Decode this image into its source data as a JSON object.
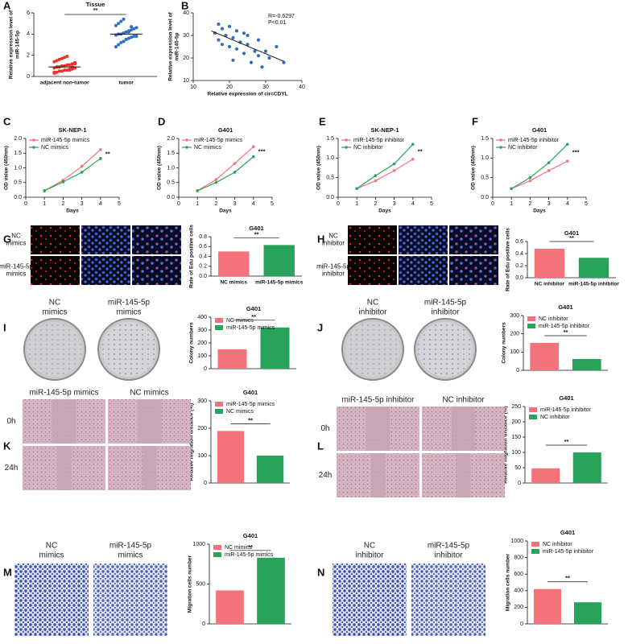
{
  "chart_data": [
    {
      "panel": "A",
      "type": "dot",
      "title": "Tissue",
      "ylabel": [
        "Relative expression level of",
        "miR-145-5p"
      ],
      "categories": [
        "adjacent non-tumor",
        "tumor"
      ],
      "colors": [
        "#e8322e",
        "#2f6fc1"
      ],
      "values": [
        [
          0.3,
          0.4,
          0.5,
          0.5,
          0.6,
          0.6,
          0.7,
          0.7,
          0.8,
          0.8,
          0.9,
          0.9,
          1.0,
          1.0,
          1.1,
          1.1,
          1.2,
          1.3,
          1.4,
          1.5,
          1.6,
          1.7,
          1.8,
          1.9,
          0.6,
          0.9,
          1.2,
          0.4
        ],
        [
          2.8,
          3.0,
          3.2,
          3.3,
          3.5,
          3.6,
          3.7,
          3.8,
          3.8,
          3.9,
          4.0,
          4.0,
          4.1,
          4.2,
          4.3,
          4.4,
          4.5,
          4.6,
          4.8,
          5.0,
          5.2,
          5.4,
          3.5,
          4.2,
          4.7
        ]
      ],
      "means": [
        0.9,
        4.0
      ],
      "ylim": [
        0,
        6
      ],
      "yticks": [
        0,
        2,
        4,
        6
      ],
      "annotation": "**"
    },
    {
      "panel": "B",
      "type": "scatter",
      "xlabel": "Relative expression of circCDYL",
      "ylabel": [
        "Relative expression level of",
        "miR-145-5p"
      ],
      "x": [
        16,
        17,
        17,
        18,
        19,
        20,
        20,
        21,
        22,
        22,
        23,
        24,
        25,
        25,
        26,
        27,
        28,
        28,
        29,
        30,
        31,
        33,
        35,
        18,
        21,
        24
      ],
      "y": [
        31,
        35,
        28,
        33,
        30,
        34,
        25,
        29,
        32,
        24,
        27,
        22,
        30,
        26,
        18,
        23,
        21,
        28,
        16,
        23,
        20,
        25,
        18,
        26,
        19,
        31
      ],
      "color": "#2f6fc1",
      "fit_x": [
        15,
        35
      ],
      "fit_y": [
        32,
        18.5
      ],
      "xlim": [
        10,
        40
      ],
      "xticks": [
        10,
        20,
        30,
        40
      ],
      "ylim": [
        10,
        40
      ],
      "yticks": [
        10,
        20,
        30,
        40
      ],
      "annotations": [
        "R=-0.6297",
        "P<0.01"
      ]
    },
    {
      "panel": "C",
      "type": "line",
      "title": "SK-NEP-1",
      "xlabel": "Days",
      "ylabel": "OD value (450nm)",
      "x": [
        1,
        2,
        3,
        4
      ],
      "series": [
        {
          "name": "miR-145-5p mimics",
          "color": "#f4727a",
          "values": [
            0.22,
            0.58,
            1.05,
            1.62
          ]
        },
        {
          "name": "NC mimics",
          "color": "#27a35a",
          "values": [
            0.22,
            0.52,
            0.85,
            1.32
          ]
        }
      ],
      "xlim": [
        0,
        5
      ],
      "xticks": [
        0,
        1,
        2,
        3,
        4,
        5
      ],
      "ylim": [
        0,
        2
      ],
      "yticks": [
        {
          "value": 0,
          "label": "0.0"
        },
        0.5,
        {
          "value": 1,
          "label": "1.0"
        },
        1.5,
        {
          "value": 2,
          "label": "2.0"
        }
      ],
      "annotation": "**"
    },
    {
      "panel": "D",
      "type": "line",
      "title": "G401",
      "xlabel": "Days",
      "ylabel": "OD value (450nm)",
      "x": [
        1,
        2,
        3,
        4
      ],
      "series": [
        {
          "name": "miR-145-5p mimics",
          "color": "#f4727a",
          "values": [
            0.22,
            0.6,
            1.15,
            1.72
          ]
        },
        {
          "name": "NC mimics",
          "color": "#27a35a",
          "values": [
            0.22,
            0.5,
            0.85,
            1.38
          ]
        }
      ],
      "xlim": [
        0,
        5
      ],
      "xticks": [
        0,
        1,
        2,
        3,
        4,
        5
      ],
      "ylim": [
        0,
        2
      ],
      "yticks": [
        {
          "value": 0,
          "label": "0.0"
        },
        0.5,
        {
          "value": 1,
          "label": "1.0"
        },
        1.5,
        {
          "value": 2,
          "label": "2.0"
        }
      ],
      "annotation": "***"
    },
    {
      "panel": "E",
      "type": "line",
      "title": "SK-NEP-1",
      "xlabel": "Days",
      "ylabel": "OD value (450nm)",
      "x": [
        1,
        2,
        3,
        4
      ],
      "series": [
        {
          "name": "miR-145-5p inhibitor",
          "color": "#f4727a",
          "values": [
            0.22,
            0.42,
            0.68,
            0.97
          ]
        },
        {
          "name": "NC inhibitor",
          "color": "#27a35a",
          "values": [
            0.22,
            0.55,
            0.85,
            1.35
          ]
        }
      ],
      "xlim": [
        0,
        5
      ],
      "xticks": [
        0,
        1,
        2,
        3,
        4,
        5
      ],
      "ylim": [
        0,
        1.5
      ],
      "yticks": [
        {
          "value": 0,
          "label": "0.0"
        },
        0.5,
        {
          "value": 1,
          "label": "1.0"
        },
        1.5
      ],
      "annotation": "**"
    },
    {
      "panel": "F",
      "type": "line",
      "title": "G401",
      "xlabel": "Days",
      "ylabel": "OD value (450nm)",
      "x": [
        1,
        2,
        3,
        4
      ],
      "series": [
        {
          "name": "miR-145-5p inhibitor",
          "color": "#f4727a",
          "values": [
            0.22,
            0.42,
            0.68,
            0.92
          ]
        },
        {
          "name": "NC inhibitor",
          "color": "#27a35a",
          "values": [
            0.22,
            0.5,
            0.88,
            1.35
          ]
        }
      ],
      "xlim": [
        0,
        5
      ],
      "xticks": [
        0,
        1,
        2,
        3,
        4,
        5
      ],
      "ylim": [
        0,
        1.5
      ],
      "yticks": [
        {
          "value": 0,
          "label": "0.0"
        },
        0.5,
        {
          "value": 1,
          "label": "1.0"
        },
        1.5
      ],
      "annotation": "***"
    },
    {
      "panel": "G",
      "type": "bar",
      "title": "G401",
      "ylabel": "Rate of Edu positive cells",
      "categories": [
        "NC mimics",
        "miR-145-5p mimics"
      ],
      "values": [
        0.5,
        0.63
      ],
      "colors": [
        "#f4727a",
        "#27a35a"
      ],
      "ylim": [
        0,
        0.8
      ],
      "yticks": [
        {
          "value": 0,
          "label": "0.0"
        },
        0.2,
        0.4,
        0.6,
        0.8
      ],
      "annotation": "**",
      "image_labels": [
        [
          "NC",
          "mimics"
        ],
        [
          "miR-145-5p",
          "mimics"
        ]
      ]
    },
    {
      "panel": "H",
      "type": "bar",
      "title": "G401",
      "ylabel": "Rate of Edu positive cells",
      "categories": [
        "NC inhibitor",
        "miR-145-5p inhibitor"
      ],
      "values": [
        0.48,
        0.33
      ],
      "colors": [
        "#f4727a",
        "#27a35a"
      ],
      "ylim": [
        0,
        0.6
      ],
      "yticks": [
        {
          "value": 0,
          "label": "0.0"
        },
        0.2,
        0.4,
        0.6
      ],
      "annotation": "**",
      "image_labels": [
        [
          "NC",
          "inhibitor"
        ],
        [
          "miR-145-5p",
          "inhibitor"
        ]
      ]
    },
    {
      "panel": "I",
      "type": "bar",
      "title": "G401",
      "ylabel": "Colony numbers",
      "series": [
        {
          "name": "NC mimics",
          "color": "#f4727a",
          "values": [
            150
          ]
        },
        {
          "name": "miR-145-5p mimics",
          "color": "#27a35a",
          "values": [
            320
          ]
        }
      ],
      "ylim": [
        0,
        400
      ],
      "yticks": [
        0,
        100,
        200,
        300,
        400
      ],
      "annotation": "**",
      "image_labels": [
        [
          "NC",
          "mimics"
        ],
        [
          "miR-145-5p",
          "mimics"
        ]
      ]
    },
    {
      "panel": "J",
      "type": "bar",
      "title": "G401",
      "ylabel": "Colony numbers",
      "series": [
        {
          "name": "NC inhibitor",
          "color": "#f4727a",
          "values": [
            150
          ]
        },
        {
          "name": "miR-145-5p inhibitor",
          "color": "#27a35a",
          "values": [
            62
          ]
        }
      ],
      "ylim": [
        0,
        300
      ],
      "yticks": [
        0,
        100,
        200,
        300
      ],
      "annotation": "**",
      "image_labels": [
        [
          "NC",
          "inhibitor"
        ],
        [
          "miR-145-5p",
          "inhibitor"
        ]
      ]
    },
    {
      "panel": "K",
      "type": "bar",
      "title": "G401",
      "ylabel": "Relative migration distance (%)",
      "series": [
        {
          "name": "miR-145-5p mimics",
          "color": "#f4727a",
          "values": [
            190
          ]
        },
        {
          "name": "NC mimics",
          "color": "#27a35a",
          "values": [
            100
          ]
        }
      ],
      "ylim": [
        0,
        300
      ],
      "yticks": [
        0,
        100,
        200,
        300
      ],
      "annotation": "**",
      "image_labels": [
        [
          "miR-145-5p mimics"
        ],
        [
          "NC mimics"
        ]
      ],
      "row_labels": [
        "0h",
        "24h"
      ]
    },
    {
      "panel": "L",
      "type": "bar",
      "title": "G401",
      "ylabel": "Relative migration distance (%)",
      "series": [
        {
          "name": "miR-145-5p inhibitor",
          "color": "#f4727a",
          "values": [
            48
          ]
        },
        {
          "name": "NC inhibitor",
          "color": "#27a35a",
          "values": [
            100
          ]
        }
      ],
      "ylim": [
        0,
        250
      ],
      "yticks": [
        0,
        50,
        100,
        150,
        200,
        250
      ],
      "annotation": "**",
      "image_labels": [
        [
          "miR-145-5p inhibitor"
        ],
        [
          "NC inhibitor"
        ]
      ],
      "row_labels": [
        "0h",
        "24h"
      ]
    },
    {
      "panel": "M",
      "type": "bar",
      "title": "G401",
      "ylabel": "Migration cells number",
      "series": [
        {
          "name": "NC mimics",
          "color": "#f4727a",
          "values": [
            420
          ]
        },
        {
          "name": "miR-145-5p mimics",
          "color": "#27a35a",
          "values": [
            830
          ]
        }
      ],
      "ylim": [
        0,
        1000
      ],
      "yticks": [
        0,
        500,
        1000
      ],
      "annotation": "**",
      "image_labels": [
        [
          "NC",
          "mimics"
        ],
        [
          "miR-145-5p",
          "mimics"
        ]
      ]
    },
    {
      "panel": "N",
      "type": "bar",
      "title": "G401",
      "ylabel": "Migration cells number",
      "series": [
        {
          "name": "NC inhibitor",
          "color": "#f4727a",
          "values": [
            420
          ]
        },
        {
          "name": "miR-145-5p inhibitor",
          "color": "#27a35a",
          "values": [
            260
          ]
        }
      ],
      "ylim": [
        0,
        1000
      ],
      "yticks": [
        0,
        200,
        400,
        600,
        800,
        1000
      ],
      "annotation": "**",
      "image_labels": [
        [
          "NC",
          "inhibitor"
        ],
        [
          "miR-145-5p",
          "inhibitor"
        ]
      ]
    }
  ]
}
